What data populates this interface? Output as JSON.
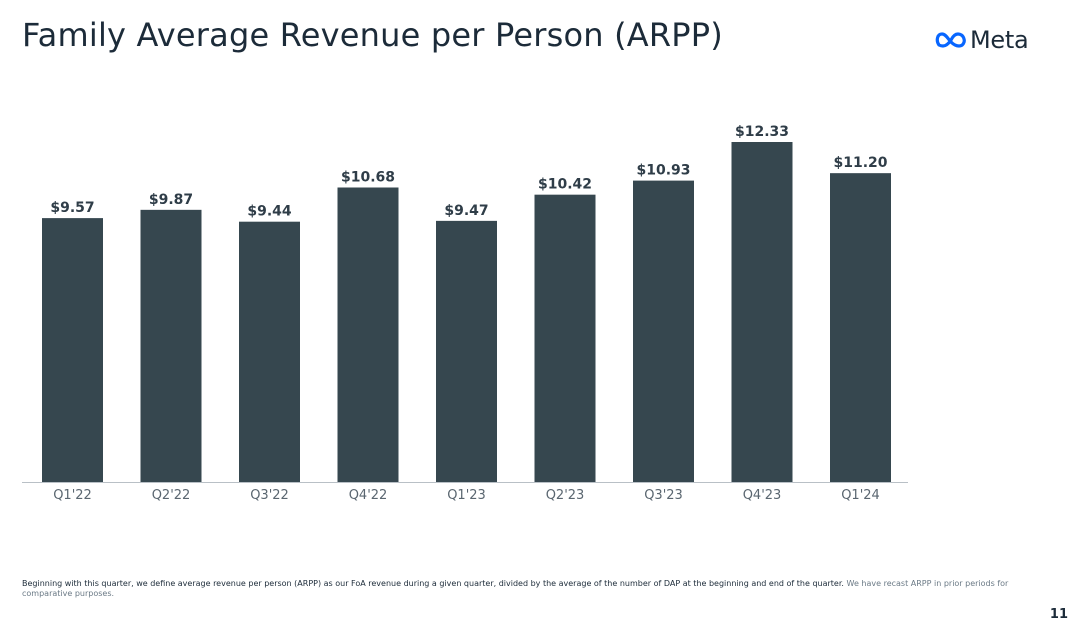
{
  "slide": {
    "title": "Family Average Revenue per Person (ARPP)",
    "logo_text": "Meta",
    "page_number": "11",
    "footnote_main": "Beginning with this quarter, we define average revenue per person (ARPP) as our FoA revenue during a given quarter, divided by the average of the number of DAP at the beginning and end of the quarter.",
    "footnote_note": "We have recast ARPP in prior periods for comparative purposes."
  },
  "colors": {
    "bar": "#36474f",
    "axis": "#b9c0c6",
    "logo_blue": "#0866ff"
  },
  "icons": {
    "logo": "meta-infinity-icon"
  },
  "chart_data": {
    "type": "bar",
    "title": "Family Average Revenue per Person (ARPP)",
    "categories": [
      "Q1'22",
      "Q2'22",
      "Q3'22",
      "Q4'22",
      "Q1'23",
      "Q2'23",
      "Q3'23",
      "Q4'23",
      "Q1'24"
    ],
    "values": [
      9.57,
      9.87,
      9.44,
      10.68,
      9.47,
      10.42,
      10.93,
      12.33,
      11.2
    ],
    "labels": [
      "$9.57",
      "$9.87",
      "$9.44",
      "$10.68",
      "$9.47",
      "$10.42",
      "$10.93",
      "$12.33",
      "$11.20"
    ],
    "ylim": [
      0,
      12.33
    ],
    "xlabel": "",
    "ylabel": "",
    "grid": false,
    "legend": "none"
  }
}
